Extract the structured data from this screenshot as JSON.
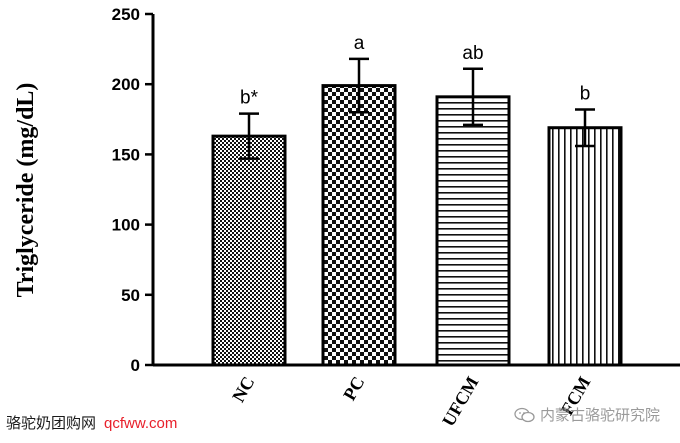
{
  "chart_data": {
    "type": "bar",
    "ylabel": "Triglyceride (mg/dL)",
    "categories": [
      "NC",
      "PC",
      "UFCM",
      "FCM"
    ],
    "values": [
      163,
      199,
      191,
      169
    ],
    "errors": [
      16,
      19,
      20,
      13
    ],
    "annotations": [
      "b*",
      "a",
      "ab",
      "b"
    ],
    "patterns": [
      "dense-dots",
      "checker",
      "horizontal-lines",
      "vertical-lines"
    ],
    "ylim": [
      0,
      250
    ],
    "yticks": [
      0,
      50,
      100,
      150,
      200,
      250
    ],
    "grid": false
  },
  "watermarks": {
    "left_text": "骆驼奶团购网",
    "left_url": "qcfww.com",
    "right_text": "内蒙古骆驼研究院"
  },
  "colors": {
    "bar_outline": "#000000",
    "url": "#e8202b",
    "right_watermark": "#9a9a9a"
  }
}
